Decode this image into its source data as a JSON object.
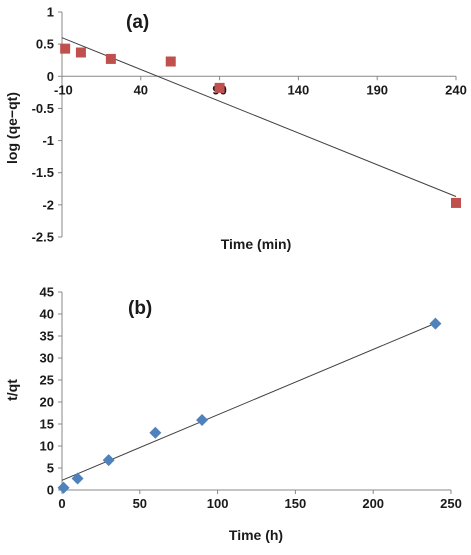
{
  "chart_data": [
    {
      "type": "scatter",
      "panel_label": "(a)",
      "xlabel": "Time (min)",
      "ylabel": "log (qe−qt)",
      "xlim": [
        -10,
        240
      ],
      "ylim": [
        -2.5,
        1
      ],
      "x_ticks": [
        "-10",
        "40",
        "90",
        "140",
        "190",
        "240"
      ],
      "y_ticks": [
        "1",
        "0.5",
        "0",
        "-0.5",
        "-1",
        "-1.5",
        "-2",
        "-2.5"
      ],
      "marker": "square",
      "marker_color": "#C0504D",
      "trendline": {
        "x": [
          -10,
          240
        ],
        "y": [
          0.6,
          -1.87
        ]
      },
      "series": [
        {
          "x": [
            -8,
            2,
            21,
            59,
            90,
            240
          ],
          "y": [
            0.43,
            0.37,
            0.27,
            0.23,
            -0.18,
            -1.97
          ]
        }
      ],
      "grid": false
    },
    {
      "type": "scatter",
      "panel_label": "(b)",
      "xlabel": "Time (h)",
      "ylabel": "t/qt",
      "xlim": [
        0,
        250
      ],
      "ylim": [
        0,
        45
      ],
      "x_ticks": [
        "0",
        "50",
        "100",
        "150",
        "200",
        "250"
      ],
      "y_ticks": [
        "45",
        "40",
        "35",
        "30",
        "25",
        "20",
        "15",
        "10",
        "5",
        "0"
      ],
      "marker": "diamond",
      "marker_color": "#4F81BD",
      "trendline": {
        "x": [
          0,
          240
        ],
        "y": [
          2.2,
          37.9
        ]
      },
      "series": [
        {
          "x": [
            1,
            10,
            30,
            60,
            90,
            240
          ],
          "y": [
            0.5,
            2.6,
            6.8,
            13.0,
            15.9,
            37.8
          ]
        }
      ],
      "grid": false
    }
  ]
}
